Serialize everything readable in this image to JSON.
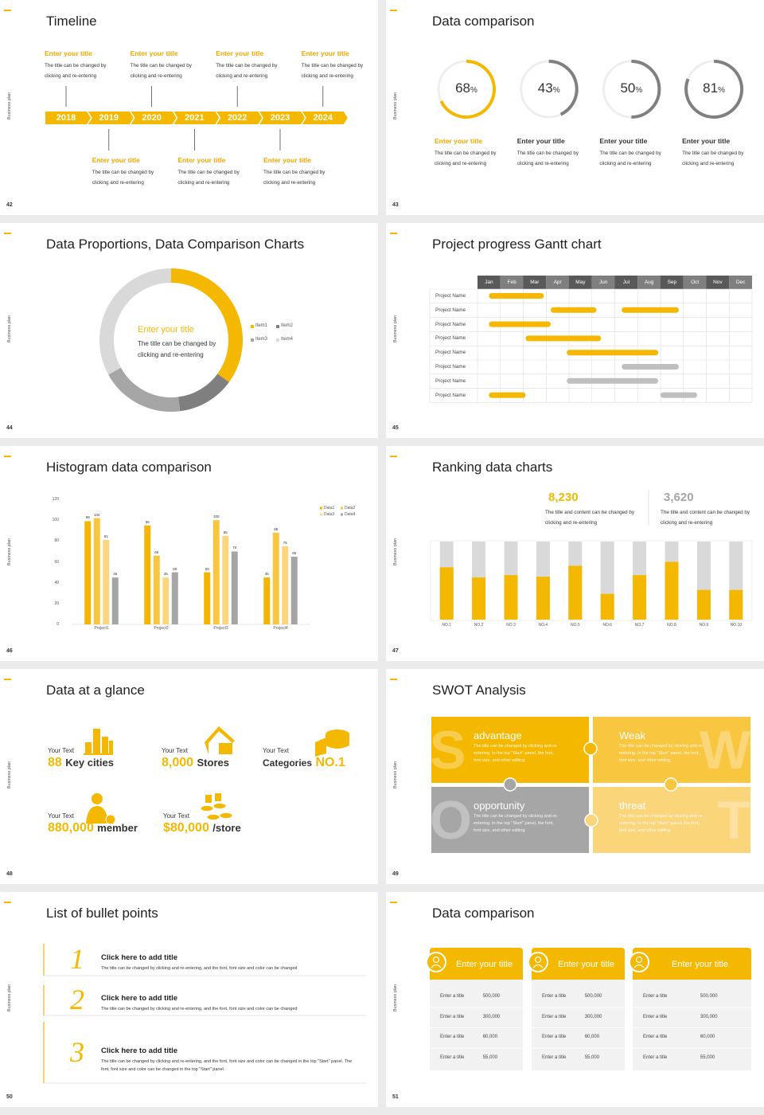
{
  "side_label": "Business plan",
  "slides": [
    {
      "page": "42",
      "title": "Timeline",
      "years": [
        "2018",
        "2019",
        "2020",
        "2021",
        "2022",
        "2023",
        "2024"
      ],
      "items": [
        {
          "title": "Enter your title",
          "text": "The title can be changed by clicking and re-entering"
        },
        {
          "title": "Enter your title",
          "text": "The title can be changed by clicking and re-entering"
        },
        {
          "title": "Enter your title",
          "text": "The title can be changed by clicking and re-entering"
        },
        {
          "title": "Enter your title",
          "text": "The title can be changed by clicking and re-entering"
        },
        {
          "title": "Enter your title",
          "text": "The title can be changed by clicking and re-entering"
        },
        {
          "title": "Enter your title",
          "text": "The title can be changed by clicking and re-entering"
        },
        {
          "title": "Enter your title",
          "text": "The title can be changed by clicking and re-entering"
        }
      ]
    },
    {
      "page": "43",
      "title": "Data comparison",
      "chart_data": {
        "type": "ring",
        "ylim": [
          0,
          100
        ],
        "unit": "%",
        "values": [
          68,
          43,
          50,
          81
        ],
        "colors": [
          "#f5b800",
          "#808080",
          "#808080",
          "#808080"
        ]
      },
      "items": [
        {
          "title": "Enter your title",
          "text": "The title can be changed by clicking and re-entering"
        },
        {
          "title": "Enter your title",
          "text": "The title can be changed by clicking and re-entering"
        },
        {
          "title": "Enter your title",
          "text": "The title can be changed by clicking and re-entering"
        },
        {
          "title": "Enter your title",
          "text": "The title can be changed by clicking and re-entering"
        }
      ]
    },
    {
      "page": "44",
      "title": "Data Proportions, Data Comparison Charts",
      "chart_data": {
        "type": "donut",
        "categories": [
          "Item1",
          "Item2",
          "Item3",
          "Item4"
        ],
        "values": [
          35,
          13,
          19,
          33
        ],
        "colors": [
          "#f5b800",
          "#7f7f7f",
          "#a6a6a6",
          "#d9d9d9"
        ]
      },
      "center": {
        "title": "Enter your title",
        "text": "The title can be changed by clicking and re-entering"
      }
    },
    {
      "page": "45",
      "title": "Project progress Gantt chart",
      "chart_data": {
        "type": "gantt",
        "categories": [
          "Jan",
          "Feb",
          "Mar",
          "Apr",
          "May",
          "Jun",
          "Jul",
          "Aug",
          "Sep",
          "Oct",
          "Nov",
          "Dec"
        ],
        "xlim": [
          0,
          12
        ],
        "tasks": [
          {
            "name": "Project Name",
            "bars": [
              {
                "start": 0.5,
                "end": 2.9,
                "color": "#f5b800"
              }
            ]
          },
          {
            "name": "Project Name",
            "bars": [
              {
                "start": 3.2,
                "end": 5.2,
                "color": "#f5b800"
              },
              {
                "start": 6.3,
                "end": 8.8,
                "color": "#f5b800"
              }
            ]
          },
          {
            "name": "Project Name",
            "bars": [
              {
                "start": 0.5,
                "end": 3.2,
                "color": "#f5b800"
              }
            ]
          },
          {
            "name": "Project Name",
            "bars": [
              {
                "start": 2.1,
                "end": 5.4,
                "color": "#f5b800"
              }
            ]
          },
          {
            "name": "Project Name",
            "bars": [
              {
                "start": 3.9,
                "end": 7.9,
                "color": "#f5b800"
              }
            ]
          },
          {
            "name": "Project Name",
            "bars": [
              {
                "start": 6.3,
                "end": 8.8,
                "color": "#bfbfbf"
              }
            ]
          },
          {
            "name": "Project Name",
            "bars": [
              {
                "start": 3.9,
                "end": 7.9,
                "color": "#bfbfbf"
              }
            ]
          },
          {
            "name": "Project Name",
            "bars": [
              {
                "start": 0.5,
                "end": 2.1,
                "color": "#f5b800"
              },
              {
                "start": 8.0,
                "end": 9.6,
                "color": "#bfbfbf"
              }
            ]
          }
        ]
      }
    },
    {
      "page": "46",
      "title": "Histogram data comparison",
      "chart_data": {
        "type": "bar",
        "categories": [
          "Project1",
          "Project2",
          "Project3",
          "Project4"
        ],
        "ylim": [
          0,
          120
        ],
        "yticks": [
          0,
          20,
          40,
          60,
          80,
          100,
          120
        ],
        "legend": "top-right",
        "series": [
          {
            "name": "Data1",
            "color": "#f5b400",
            "values": [
              99,
              95,
              50,
              45
            ]
          },
          {
            "name": "Data2",
            "color": "#f9c640",
            "values": [
              102,
              66,
              100,
              88
            ]
          },
          {
            "name": "Data3",
            "color": "#fcd57e",
            "values": [
              81,
              45,
              85,
              75
            ]
          },
          {
            "name": "Data4",
            "color": "#a5a5a5",
            "values": [
              45,
              50,
              70,
              65
            ]
          }
        ]
      }
    },
    {
      "page": "47",
      "title": "Ranking data charts",
      "highlights": [
        {
          "value": "8,230",
          "text": "The title and content can be changed by clicking and re-entering"
        },
        {
          "value": "3,620",
          "text": "The title and content can be changed by clicking and re-entering"
        }
      ],
      "chart_data": {
        "type": "progress",
        "categories": [
          "NO.1",
          "NO.2",
          "NO.3",
          "NO.4",
          "NO.5",
          "NO.6",
          "NO.7",
          "NO.8",
          "NO.9",
          "NO.10"
        ],
        "values": [
          67,
          54,
          57,
          55,
          69,
          33,
          57,
          74,
          38,
          38
        ],
        "ylim": [
          0,
          100
        ],
        "color": "#f5b800",
        "track_color": "#d9d9d9"
      }
    },
    {
      "page": "48",
      "title": "Data at a glance",
      "items": [
        {
          "label": "Your Text",
          "value": "88",
          "suffix": "Key cities"
        },
        {
          "label": "Your Text",
          "value": "8,000",
          "suffix": "Stores"
        },
        {
          "label": "Your Text",
          "prefix": "Categories",
          "value": "NO.1"
        },
        {
          "label": "Your Text",
          "value": "880,000",
          "suffix": "member"
        },
        {
          "label": "Your Text",
          "value": "$80,000",
          "suffix": "/store"
        }
      ]
    },
    {
      "page": "49",
      "title": "SWOT Analysis",
      "quadrants": [
        {
          "letter": "S",
          "title": "advantage",
          "text": "The title can be changed by clicking and re-entering. In the top \"Start\" panel, the font, font size, and other editing"
        },
        {
          "letter": "W",
          "title": "Weak",
          "text": "The title can be changed by clicking and re-entering. In the top \"Start\" panel, the font, font size, and other editing"
        },
        {
          "letter": "O",
          "title": "opportunity",
          "text": "The title can be changed by clicking and re-entering. In the top \"Start\" panel, the font, font size, and other editing"
        },
        {
          "letter": "T",
          "title": "threat",
          "text": "The title can be changed by clicking and re-entering. In the top \"Start\" panel, the font, font size, and other editing"
        }
      ]
    },
    {
      "page": "50",
      "title": "List of bullet points",
      "items": [
        {
          "number": "1",
          "title": "Click here to add title",
          "text": "The title can be changed by clicking and re-entering, and the font, font size and color can be changed"
        },
        {
          "number": "2",
          "title": "Click here to add title",
          "text": "The title can be changed by clicking and re-entering, and the font, font size and color can be changed"
        },
        {
          "number": "3",
          "title": "Click here to add title",
          "text": "The title can be changed by clicking and re-entering, and the font, font size and color can be changed in the top \"Start\" panel. The font, font size and color can be changed in the top \"Start\" panel."
        }
      ]
    },
    {
      "page": "51",
      "title": "Data comparison",
      "cards": [
        {
          "title": "Enter your title",
          "rows": [
            {
              "label": "Enter a title",
              "value": "500,000"
            },
            {
              "label": "Enter a title",
              "value": "300,000"
            },
            {
              "label": "Enter a title",
              "value": "60,000"
            },
            {
              "label": "Enter a title",
              "value": "55,000"
            }
          ]
        },
        {
          "title": "Enter your title",
          "rows": [
            {
              "label": "Enter a title",
              "value": "500,000"
            },
            {
              "label": "Enter a title",
              "value": "300,000"
            },
            {
              "label": "Enter a title",
              "value": "60,000"
            },
            {
              "label": "Enter a title",
              "value": "55,000"
            }
          ]
        },
        {
          "title": "Enter your title",
          "rows": [
            {
              "label": "Enter a title",
              "value": "500,000"
            },
            {
              "label": "Enter a title",
              "value": "300,000"
            },
            {
              "label": "Enter a title",
              "value": "60,000"
            },
            {
              "label": "Enter a title",
              "value": "55,000"
            }
          ]
        }
      ]
    }
  ]
}
